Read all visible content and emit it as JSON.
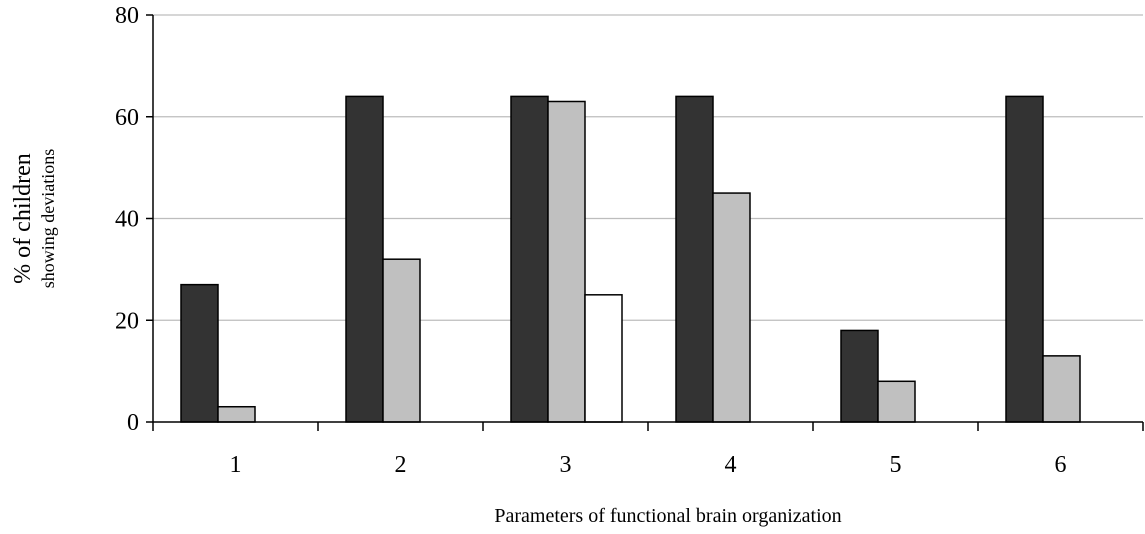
{
  "chart_data": {
    "type": "bar",
    "title": "",
    "xlabel": "Parameters of functional brain organization",
    "ylabel_main": "% of children",
    "ylabel_sub": "showing deviations",
    "categories": [
      "1",
      "2",
      "3",
      "4",
      "5",
      "6"
    ],
    "ylim": [
      0,
      80
    ],
    "yticks": [
      0,
      20,
      40,
      60,
      80
    ],
    "grid": true,
    "legend": "none",
    "series": [
      {
        "color": "#333333",
        "values": [
          27,
          64,
          64,
          64,
          18,
          64
        ]
      },
      {
        "color": "#c0c0c0",
        "values": [
          3,
          32,
          63,
          45,
          8,
          13
        ]
      },
      {
        "color": "#ffffff",
        "values": [
          0,
          0,
          25,
          0,
          0,
          0
        ]
      }
    ]
  }
}
